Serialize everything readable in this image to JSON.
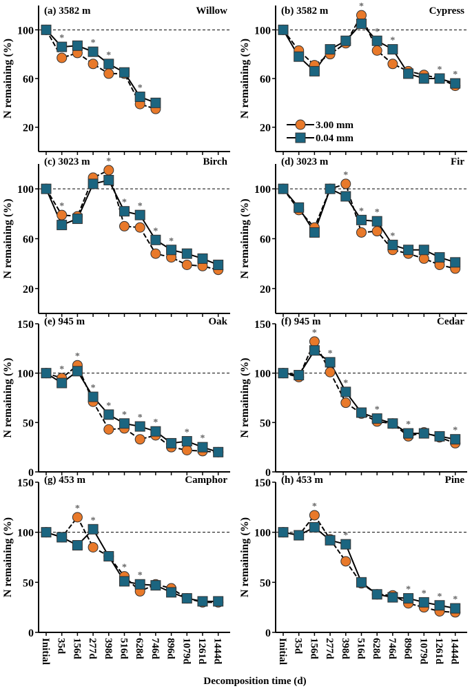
{
  "chart_data": {
    "type": "line",
    "xlabel": "Decomposition time (d)",
    "ylabel": "N remaining (%)",
    "categories": [
      "Initial",
      "35d",
      "156d",
      "277d",
      "398d",
      "516d",
      "628d",
      "746d",
      "896d",
      "1079d",
      "1261d",
      "1444d"
    ],
    "legend": {
      "placement": "inside panel (b), bottom-left",
      "entries": [
        {
          "name": "3.00 mm",
          "marker": "circle",
          "color": "#E8792A"
        },
        {
          "name": "0.04 mm",
          "marker": "square",
          "color": "#1B6580"
        }
      ]
    },
    "reference_line": 100,
    "significance_marker": "*",
    "panels": [
      {
        "label": "(a) 3582 m",
        "species": "Willow",
        "ylim": [
          0,
          120
        ],
        "yticks": [
          20,
          60,
          100
        ],
        "series": [
          {
            "name": "3.00 mm",
            "values": [
              100,
              77,
              81,
              72,
              64,
              64,
              39,
              35
            ]
          },
          {
            "name": "0.04 mm",
            "values": [
              100,
              86,
              87,
              82,
              72,
              65,
              45,
              40
            ]
          }
        ],
        "significant": [
          "35d",
          "277d",
          "398d",
          "628d"
        ]
      },
      {
        "label": "(b) 3582 m",
        "species": "Cypress",
        "ylim": [
          0,
          120
        ],
        "yticks": [
          20,
          60,
          100
        ],
        "series": [
          {
            "name": "3.00 mm",
            "values": [
              100,
              83,
              71,
              80,
              89,
              112,
              83,
              72,
              66,
              63,
              60,
              54
            ]
          },
          {
            "name": "0.04 mm",
            "values": [
              100,
              78,
              66,
              84,
              91,
              105,
              91,
              84,
              64,
              60,
              60,
              56
            ]
          }
        ],
        "significant": [
          "516d",
          "628d",
          "746d",
          "1261d",
          "1444d"
        ]
      },
      {
        "label": "(c) 3023 m",
        "species": "Birch",
        "ylim": [
          0,
          120
        ],
        "yticks": [
          20,
          60,
          100
        ],
        "series": [
          {
            "name": "3.00 mm",
            "values": [
              100,
              79,
              78,
              109,
              115,
              70,
              69,
              48,
              45,
              39,
              38,
              35
            ]
          },
          {
            "name": "0.04 mm",
            "values": [
              100,
              71,
              76,
              104,
              107,
              82,
              79,
              59,
              51,
              48,
              44,
              39
            ]
          }
        ],
        "significant": [
          "35d",
          "398d",
          "516d",
          "628d",
          "746d",
          "896d"
        ]
      },
      {
        "label": "(d) 3023 m",
        "species": "Fir",
        "ylim": [
          0,
          120
        ],
        "yticks": [
          20,
          60,
          100
        ],
        "series": [
          {
            "name": "3.00 mm",
            "values": [
              100,
              83,
              69,
              100,
              104,
              65,
              66,
              51,
              48,
              44,
              39,
              36
            ]
          },
          {
            "name": "0.04 mm",
            "values": [
              100,
              85,
              65,
              100,
              94,
              75,
              74,
              55,
              51,
              51,
              45,
              41
            ]
          }
        ],
        "significant": [
          "398d",
          "516d",
          "628d",
          "746d"
        ]
      },
      {
        "label": "(e) 945 m",
        "species": "Oak",
        "ylim": [
          0,
          150
        ],
        "yticks": [
          0,
          50,
          100,
          150
        ],
        "series": [
          {
            "name": "3.00 mm",
            "values": [
              100,
              95,
              108,
              71,
              43,
              44,
              33,
              37,
              25,
              22,
              21,
              20
            ]
          },
          {
            "name": "0.04 mm",
            "values": [
              100,
              90,
              102,
              76,
              58,
              49,
              46,
              41,
              29,
              31,
              25,
              20
            ]
          }
        ],
        "significant": [
          "35d",
          "156d",
          "277d",
          "398d",
          "516d",
          "628d",
          "746d",
          "1079d",
          "1261d"
        ]
      },
      {
        "label": "(f) 945 m",
        "species": "Cedar",
        "ylim": [
          0,
          150
        ],
        "yticks": [
          0,
          50,
          100,
          150
        ],
        "series": [
          {
            "name": "3.00 mm",
            "values": [
              100,
              96,
              132,
              101,
              70,
              59,
              51,
              49,
              36,
              40,
              35,
              29
            ]
          },
          {
            "name": "0.04 mm",
            "values": [
              100,
              98,
              123,
              111,
              81,
              60,
              54,
              49,
              39,
              39,
              36,
              33
            ]
          }
        ],
        "significant": [
          "156d",
          "277d",
          "398d",
          "628d",
          "896d",
          "1444d"
        ]
      },
      {
        "label": "(g) 453 m",
        "species": "Camphor",
        "ylim": [
          0,
          150
        ],
        "yticks": [
          0,
          50,
          100,
          150
        ],
        "series": [
          {
            "name": "3.00 mm",
            "values": [
              100,
              95,
              115,
              85,
              76,
              56,
              41,
              48,
              44,
              34,
              30,
              30
            ]
          },
          {
            "name": "0.04 mm",
            "values": [
              100,
              95,
              87,
              103,
              76,
              51,
              48,
              47,
              40,
              34,
              31,
              31
            ]
          }
        ],
        "significant": [
          "156d",
          "277d",
          "516d",
          "628d"
        ]
      },
      {
        "label": "(h) 453 m",
        "species": "Pine",
        "ylim": [
          0,
          150
        ],
        "yticks": [
          0,
          50,
          100,
          150
        ],
        "series": [
          {
            "name": "3.00 mm",
            "values": [
              100,
              97,
              117,
              93,
              71,
              49,
              38,
              37,
              29,
              25,
              21,
              20
            ]
          },
          {
            "name": "0.04 mm",
            "values": [
              100,
              97,
              105,
              92,
              88,
              50,
              38,
              35,
              34,
              30,
              27,
              24
            ]
          }
        ],
        "significant": [
          "156d",
          "398d",
          "896d",
          "1079d",
          "1261d",
          "1444d"
        ]
      }
    ]
  }
}
